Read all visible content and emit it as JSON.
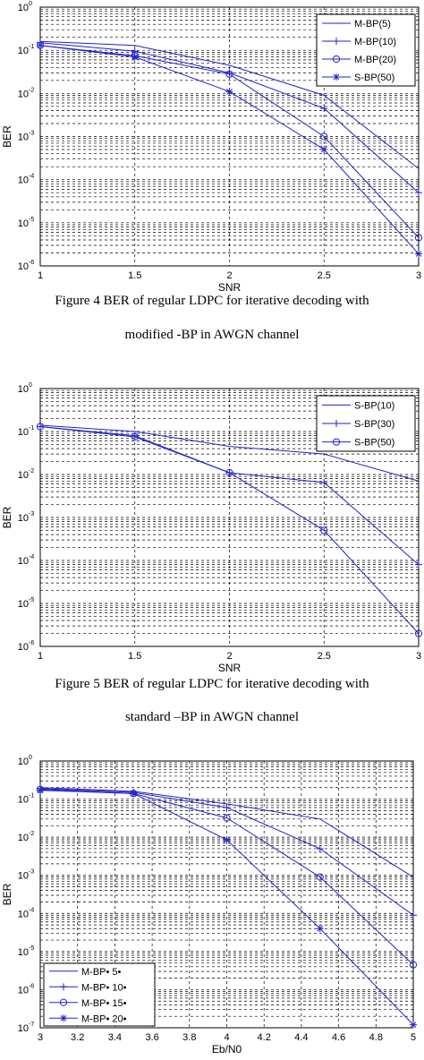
{
  "colors": {
    "series": "#2222cc",
    "axis": "#000000",
    "grid": "#000000"
  },
  "chart_data": [
    {
      "type": "line",
      "xlabel": "SNR",
      "ylabel": "BER",
      "yscale": "log",
      "xlim": [
        1,
        3
      ],
      "ylim": [
        1e-06,
        1
      ],
      "xticks": [
        "1",
        "1.5",
        "2",
        "2.5",
        "3"
      ],
      "legend_position": "top-right",
      "grid": true,
      "series": [
        {
          "name": "M-BP(5)",
          "marker": "none",
          "x": [
            1,
            1.5,
            2,
            2.5,
            3
          ],
          "y": [
            0.16,
            0.13,
            0.045,
            0.009,
            0.00018
          ]
        },
        {
          "name": "M-BP(10)",
          "marker": "plus",
          "x": [
            1,
            1.5,
            2,
            2.5,
            3
          ],
          "y": [
            0.15,
            0.095,
            0.03,
            0.0045,
            5e-05
          ]
        },
        {
          "name": "M-BP(20)",
          "marker": "circle",
          "x": [
            1,
            1.5,
            2,
            2.5,
            3
          ],
          "y": [
            0.13,
            0.075,
            0.028,
            0.001,
            4.5e-06
          ]
        },
        {
          "name": "S-BP(50)",
          "marker": "star",
          "x": [
            1,
            1.5,
            2,
            2.5,
            3
          ],
          "y": [
            0.13,
            0.07,
            0.011,
            0.0005,
            1.9e-06
          ]
        }
      ]
    },
    {
      "type": "line",
      "xlabel": "SNR",
      "ylabel": "BER",
      "yscale": "log",
      "xlim": [
        1,
        3
      ],
      "ylim": [
        1e-06,
        1
      ],
      "xticks": [
        "1",
        "1.5",
        "2",
        "2.5",
        "3"
      ],
      "legend_position": "top-right",
      "grid": true,
      "series": [
        {
          "name": "S-BP(10)",
          "marker": "none",
          "x": [
            1,
            1.5,
            2,
            2.5,
            3
          ],
          "y": [
            0.14,
            0.1,
            0.045,
            0.03,
            0.007
          ]
        },
        {
          "name": "S-BP(30)",
          "marker": "plus",
          "x": [
            1,
            1.5,
            2,
            2.5,
            3
          ],
          "y": [
            0.13,
            0.08,
            0.011,
            0.0065,
            8e-05
          ]
        },
        {
          "name": "S-BP(50)",
          "marker": "circle",
          "x": [
            1,
            1.5,
            2,
            2.5,
            3
          ],
          "y": [
            0.13,
            0.075,
            0.011,
            0.0005,
            2e-06
          ]
        }
      ]
    },
    {
      "type": "line",
      "xlabel": "Eb/N0",
      "ylabel": "BER",
      "yscale": "log",
      "xlim": [
        3,
        5
      ],
      "ylim": [
        1e-07,
        1
      ],
      "xticks": [
        "3",
        "3.2",
        "3.4",
        "3.6",
        "3.8",
        "4",
        "4.2",
        "4.4",
        "4.6",
        "4.8",
        "5"
      ],
      "legend_position": "bottom-left",
      "grid": true,
      "series": [
        {
          "name": "M-BP•   5•",
          "marker": "none",
          "x": [
            3,
            3.5,
            4,
            4.5,
            5
          ],
          "y": [
            0.2,
            0.16,
            0.075,
            0.03,
            0.0009
          ]
        },
        {
          "name": "M-BP•   10•",
          "marker": "plus",
          "x": [
            3,
            3.5,
            4,
            4.5,
            5
          ],
          "y": [
            0.19,
            0.15,
            0.06,
            0.005,
            9e-05
          ]
        },
        {
          "name": "M-BP•   15•",
          "marker": "circle",
          "x": [
            3,
            3.5,
            4,
            4.5,
            5
          ],
          "y": [
            0.18,
            0.14,
            0.032,
            0.0009,
            4.5e-06
          ]
        },
        {
          "name": "M-BP•   20•",
          "marker": "star",
          "x": [
            3,
            3.5,
            4,
            4.5,
            5
          ],
          "y": [
            0.17,
            0.14,
            0.0085,
            4e-05,
            1.2e-07
          ]
        }
      ]
    }
  ],
  "captions": {
    "fig4_line1": "Figure 4 BER of regular LDPC for iterative decoding with",
    "fig4_line2": "modified -BP in AWGN channel",
    "fig5_line1": "Figure 5 BER of regular LDPC for iterative decoding with",
    "fig5_line2": "standard –BP in AWGN channel"
  }
}
